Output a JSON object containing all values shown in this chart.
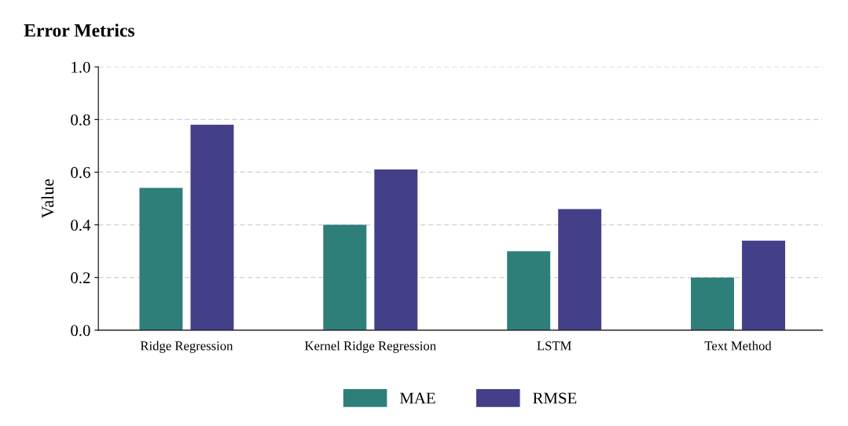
{
  "chart_data": {
    "type": "bar",
    "title": "Error Metrics",
    "ylabel": "Value",
    "categories": [
      "Ridge Regression",
      "Kernel Ridge Regression",
      "LSTM",
      "Text Method"
    ],
    "series": [
      {
        "name": "MAE",
        "color": "#2e7f7a",
        "values": [
          0.54,
          0.4,
          0.3,
          0.2
        ]
      },
      {
        "name": "RMSE",
        "color": "#433f88",
        "values": [
          0.78,
          0.61,
          0.46,
          0.34
        ]
      }
    ],
    "ylim": [
      0,
      1.0
    ],
    "yticks": [
      {
        "value": 0,
        "label": "0.0"
      },
      {
        "value": 0.2,
        "label": "0.2"
      },
      {
        "value": 0.4,
        "label": "0.4"
      },
      {
        "value": 0.6,
        "label": "0.6"
      },
      {
        "value": 0.8,
        "label": "0.8"
      },
      {
        "value": 1.0,
        "label": "1.0"
      }
    ],
    "grid": "y",
    "legend": "bottom"
  }
}
